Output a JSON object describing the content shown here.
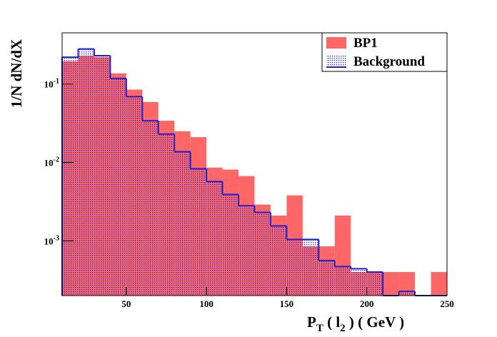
{
  "chart_data": {
    "type": "histogram",
    "log_y": true,
    "y_label": "1/N dN/dX",
    "x_label_parts": [
      "P",
      "T",
      " ( l",
      "2",
      " )   ( GeV )"
    ],
    "bins": [
      10,
      20,
      30,
      40,
      50,
      60,
      70,
      80,
      90,
      100,
      110,
      120,
      130,
      140,
      150,
      160,
      170,
      180,
      190,
      200,
      210,
      220,
      230,
      240,
      250
    ],
    "series": [
      {
        "name": "BP1",
        "color": "#ff6666",
        "values": [
          0.195,
          0.23,
          0.22,
          0.137,
          0.085,
          0.059,
          0.034,
          0.025,
          0.021,
          0.0086,
          0.0081,
          0.0067,
          0.0029,
          0.0021,
          0.0038,
          0.00085,
          0.00085,
          0.0021,
          0.0004,
          0.0004,
          0.0004,
          0.0004,
          0,
          0.0004
        ]
      },
      {
        "name": "Background",
        "color": "#2222cc",
        "values": [
          0.22,
          0.28,
          0.23,
          0.118,
          0.069,
          0.034,
          0.023,
          0.0137,
          0.0083,
          0.0057,
          0.0039,
          0.0028,
          0.0023,
          0.00155,
          0.00104,
          0.00104,
          0.00056,
          0.00047,
          0.00044,
          0.0004,
          0,
          0.000226,
          0,
          0
        ]
      }
    ],
    "xlim": [
      10,
      250
    ],
    "xticks": [
      50,
      100,
      150,
      200,
      250
    ],
    "ylim": [
      0.0002,
      0.45
    ],
    "yticks": [
      {
        "value": 0.001,
        "label": "10",
        "exponent": "-3"
      },
      {
        "value": 0.01,
        "label": "10",
        "exponent": "-2"
      },
      {
        "value": 0.1,
        "label": "10",
        "exponent": "-1"
      }
    ],
    "legend": "top-right"
  }
}
